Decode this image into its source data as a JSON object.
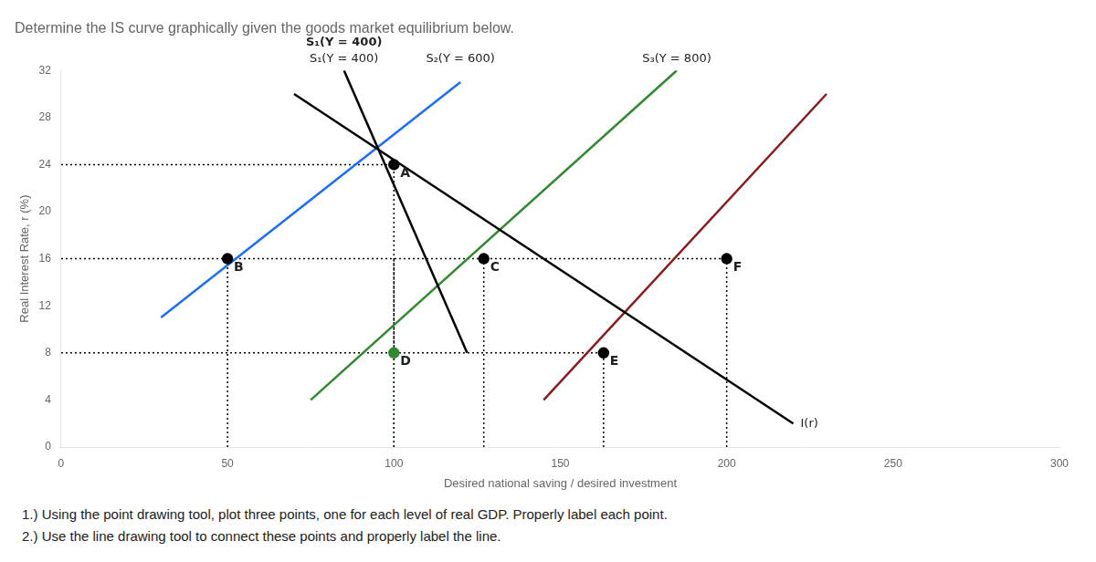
{
  "chart_data": {
    "type": "line",
    "title": "Determine the IS curve graphically given the goods market equilibrium below.",
    "instructions": [
      "1.) Using the point drawing tool, plot three points, one for each level of real GDP. Properly label each point.",
      "2.) Use the line drawing tool to connect these points and properly label the line."
    ],
    "xlabel": "Desired national saving / desired investment",
    "ylabel": "Real Interest Rate, r (%)",
    "xlim": [
      0,
      300
    ],
    "ylim": [
      0,
      32
    ],
    "xticks": [
      0,
      50,
      100,
      150,
      200,
      250,
      300
    ],
    "yticks": [
      0,
      4,
      8,
      12,
      16,
      20,
      24,
      28,
      32
    ],
    "grid": false,
    "legend": false,
    "annotations": [
      {
        "text": "S₁(Y = 400)"
      }
    ],
    "series": [
      {
        "name": "I(r)",
        "color": "#000000",
        "x": [
          70,
          220
        ],
        "values": [
          30,
          2
        ]
      },
      {
        "name": "S₁(Y = 400)",
        "color": "#000000",
        "x": [
          85,
          122
        ],
        "values": [
          32,
          8
        ]
      },
      {
        "name": "S₂(Y = 600)",
        "color": "#1a6eff",
        "x": [
          30,
          120
        ],
        "values": [
          11,
          31
        ]
      },
      {
        "name": "S₃(Y = 800)",
        "color": "#2d8a2d",
        "x": [
          75,
          185
        ],
        "values": [
          4,
          32
        ]
      },
      {
        "color": "#8b1a1a",
        "x": [
          145,
          230
        ],
        "values": [
          4,
          30
        ]
      },
      {
        "color": "#000000",
        "line_style": "dotted",
        "x": [
          0,
          100
        ],
        "values": [
          24,
          24
        ]
      },
      {
        "color": "#000000",
        "line_style": "dotted",
        "x": [
          100,
          100
        ],
        "values": [
          0,
          24
        ]
      },
      {
        "color": "#000000",
        "line_style": "dotted",
        "x": [
          0,
          200
        ],
        "values": [
          16,
          16
        ]
      },
      {
        "color": "#000000",
        "line_style": "dotted",
        "x": [
          50,
          50
        ],
        "values": [
          0,
          16
        ]
      },
      {
        "color": "#000000",
        "line_style": "dotted",
        "x": [
          127,
          127
        ],
        "values": [
          0,
          16
        ]
      },
      {
        "color": "#000000",
        "line_style": "dotted",
        "x": [
          200,
          200
        ],
        "values": [
          0,
          16
        ]
      },
      {
        "color": "#000000",
        "line_style": "dotted",
        "x": [
          0,
          163
        ],
        "values": [
          8,
          8
        ]
      },
      {
        "color": "#2d8a2d",
        "line_style": "dotted",
        "x": [
          100,
          100
        ],
        "values": [
          0,
          8
        ]
      },
      {
        "color": "#000000",
        "line_style": "dotted",
        "x": [
          100,
          100
        ],
        "values": [
          8,
          16
        ]
      },
      {
        "color": "#000000",
        "line_style": "dotted",
        "x": [
          163,
          163
        ],
        "values": [
          0,
          8
        ]
      },
      {
        "type": "scatter",
        "marker": "circle",
        "x": [
          100,
          50,
          127,
          100,
          163,
          200
        ],
        "values": [
          24,
          16,
          16,
          8,
          8,
          16
        ],
        "labels": [
          "A",
          "B",
          "C",
          "D",
          "E",
          "F"
        ],
        "colors": [
          "#000000",
          "#000000",
          "#000000",
          "#2d8a2d",
          "#000000",
          "#000000"
        ]
      }
    ]
  }
}
